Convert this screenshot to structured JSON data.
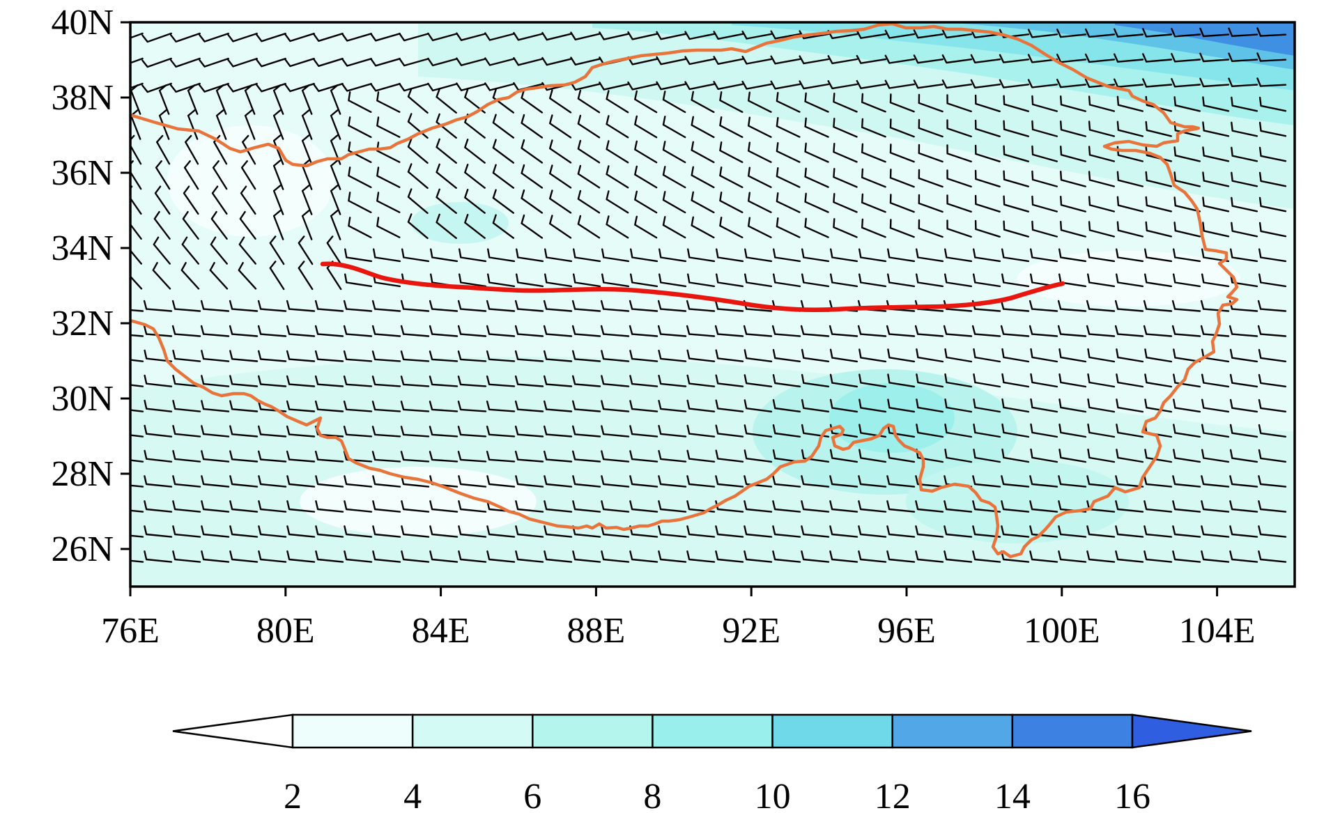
{
  "map": {
    "lon_labels": [
      "76E",
      "80E",
      "84E",
      "88E",
      "92E",
      "96E",
      "100E",
      "104E"
    ],
    "lat_labels": [
      "40N",
      "38N",
      "36N",
      "34N",
      "32N",
      "30N",
      "28N",
      "26N"
    ],
    "lon_values": [
      76,
      80,
      84,
      88,
      92,
      96,
      100,
      104
    ],
    "lat_values": [
      40,
      38,
      36,
      34,
      32,
      30,
      28,
      26
    ],
    "lon_range": [
      76,
      106
    ],
    "lat_range": [
      25,
      40
    ],
    "boundary_color": "#e8743b",
    "line_color": "#e8160e",
    "barb_color": "#000000"
  },
  "colorbar": {
    "labels": [
      "2",
      "4",
      "6",
      "8",
      "10",
      "12",
      "14",
      "16"
    ],
    "colors": [
      "#ffffff",
      "#eefefd",
      "#d3faf4",
      "#b4f5ee",
      "#98efec",
      "#6fd9ea",
      "#52a8e6",
      "#3d82e2",
      "#2f5fe0"
    ]
  }
}
